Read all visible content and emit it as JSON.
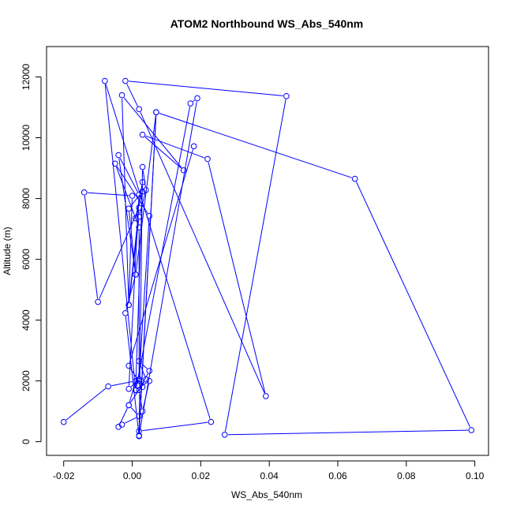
{
  "chart_data": {
    "type": "line",
    "title": "ATOM2 Northbound WS_Abs_540nm",
    "xlabel": "WS_Abs_540nm",
    "ylabel": "Altitude (m)",
    "xlim": [
      -0.025,
      0.104
    ],
    "ylim": [
      -450,
      13000
    ],
    "xticks": [
      -0.02,
      0.0,
      0.02,
      0.04,
      0.06,
      0.08,
      0.1
    ],
    "xtick_labels": [
      "-0.02",
      "0.00",
      "0.02",
      "0.04",
      "0.06",
      "0.08",
      "0.10"
    ],
    "yticks": [
      0,
      2000,
      4000,
      6000,
      8000,
      10000,
      12000
    ],
    "ytick_labels": [
      "0",
      "2000",
      "4000",
      "6000",
      "8000",
      "10000",
      "12000"
    ],
    "grid": false,
    "series": [
      {
        "color": "#0000ff",
        "marker": "open-circle",
        "x": [
          -0.02,
          -0.007,
          0.001,
          -0.001,
          -0.004,
          -0.003,
          0.002,
          -0.001,
          0.004,
          0.002,
          0.005,
          0.002,
          0.003,
          0.005,
          0.001,
          0.003,
          0.001,
          0.003,
          -0.001,
          0.001,
          -0.002,
          0.002,
          0.003,
          0.004,
          0.002,
          -0.001,
          0.0,
          -0.014,
          -0.01,
          0.002,
          -0.001,
          -0.003,
          0.015,
          0.003,
          0.022,
          0.039,
          0.002,
          -0.002,
          0.045,
          0.027,
          0.099,
          0.065,
          0.007,
          0.002,
          0.019,
          0.017,
          0.001,
          -0.008,
          0.023,
          0.002,
          0.007,
          0.001,
          -0.004,
          0.002,
          -0.001,
          0.002,
          0.005,
          -0.005,
          0.002,
          0.002,
          0.003,
          -0.001,
          0.018
        ],
        "y": [
          650,
          1820,
          2000,
          1200,
          490,
          560,
          840,
          1200,
          2050,
          2650,
          2330,
          1700,
          1000,
          2000,
          1700,
          8540,
          7350,
          8230,
          7670,
          5500,
          4230,
          180,
          9040,
          8280,
          7400,
          4500,
          8090,
          8200,
          4600,
          7700,
          4500,
          11400,
          8930,
          10100,
          9300,
          1500,
          10940,
          11870,
          11370,
          230,
          380,
          8650,
          10840,
          200,
          11300,
          11130,
          1690,
          11870,
          650,
          350,
          10840,
          5500,
          9430,
          8130,
          1740,
          2050,
          7430,
          9150,
          7050,
          2000,
          1800,
          2500,
          9720
        ]
      }
    ]
  }
}
